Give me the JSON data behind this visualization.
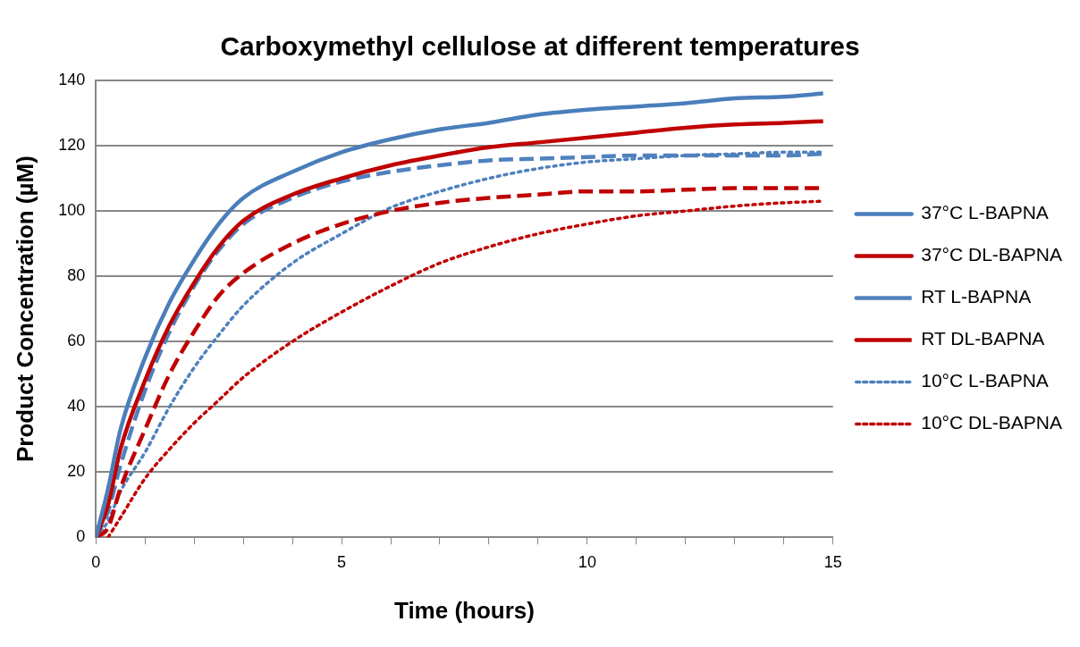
{
  "chart_data": {
    "type": "line",
    "title": "Carboxymethyl cellulose at different temperatures",
    "xlabel": "Time (hours)",
    "ylabel": "Product Concentration (µM)",
    "x": [
      0,
      0.25,
      0.5,
      1,
      1.5,
      2,
      2.5,
      3,
      4,
      5,
      6,
      7,
      8,
      9,
      10,
      11,
      12,
      13,
      14,
      14.8
    ],
    "series": [
      {
        "name": "37°C L-BAPNA",
        "color": "#4a7ebb",
        "line_style": "solid",
        "values": [
          0,
          15,
          33,
          55,
          72,
          85,
          96,
          104,
          112,
          118,
          122,
          125,
          127,
          129.5,
          131,
          132,
          133,
          134.5,
          135,
          136
        ]
      },
      {
        "name": "37°C DL-BAPNA",
        "color": "#c00000",
        "line_style": "solid",
        "values": [
          0,
          10,
          27,
          48,
          65,
          78,
          89,
          97,
          105,
          110,
          114,
          117,
          119.5,
          121,
          122.5,
          124,
          125.5,
          126.5,
          127,
          127.5
        ]
      },
      {
        "name": "RT L-BAPNA",
        "color": "#4f81bd",
        "line_style": "dashed",
        "values": [
          0,
          8,
          22,
          45,
          63,
          77,
          88,
          96,
          104,
          109,
          112,
          114,
          115.5,
          116,
          116.5,
          117,
          117,
          117,
          117,
          117.5
        ]
      },
      {
        "name": "RT DL-BAPNA",
        "color": "#c00000",
        "line_style": "dashed",
        "values": [
          0,
          3,
          15,
          33,
          50,
          63,
          74,
          81,
          90,
          96,
          100,
          102.5,
          104,
          105,
          106,
          106,
          106.5,
          107,
          107,
          107
        ]
      },
      {
        "name": "10°C L-BAPNA",
        "color": "#4f81bd",
        "line_style": "dotted",
        "values": [
          0,
          5,
          14,
          26,
          40,
          52,
          62,
          71,
          84,
          93,
          101,
          106,
          110,
          113,
          115,
          116,
          117,
          117.5,
          118,
          118
        ]
      },
      {
        "name": "10°C DL-BAPNA",
        "color": "#c00000",
        "line_style": "dotted",
        "values": [
          null,
          0,
          6,
          18,
          27,
          35,
          42,
          49,
          60,
          69,
          77,
          84,
          89,
          93,
          96,
          98.5,
          100,
          101.5,
          102.5,
          103
        ]
      }
    ],
    "xlim": [
      0,
      15
    ],
    "xticks": [
      0,
      {
        "value": 1,
        "label": null
      },
      {
        "value": 2,
        "label": null
      },
      {
        "value": 3,
        "label": null
      },
      {
        "value": 4,
        "label": null
      },
      5,
      {
        "value": 6,
        "label": null
      },
      {
        "value": 7,
        "label": null
      },
      {
        "value": 8,
        "label": null
      },
      {
        "value": 9,
        "label": null
      },
      10,
      {
        "value": 11,
        "label": null
      },
      {
        "value": 12,
        "label": null
      },
      {
        "value": 13,
        "label": null
      },
      {
        "value": 14,
        "label": null
      },
      15
    ],
    "ylim": [
      0,
      140
    ],
    "yticks": [
      0,
      20,
      40,
      60,
      80,
      100,
      120,
      140
    ],
    "grid": "y",
    "legend": "right",
    "marker": "none"
  }
}
